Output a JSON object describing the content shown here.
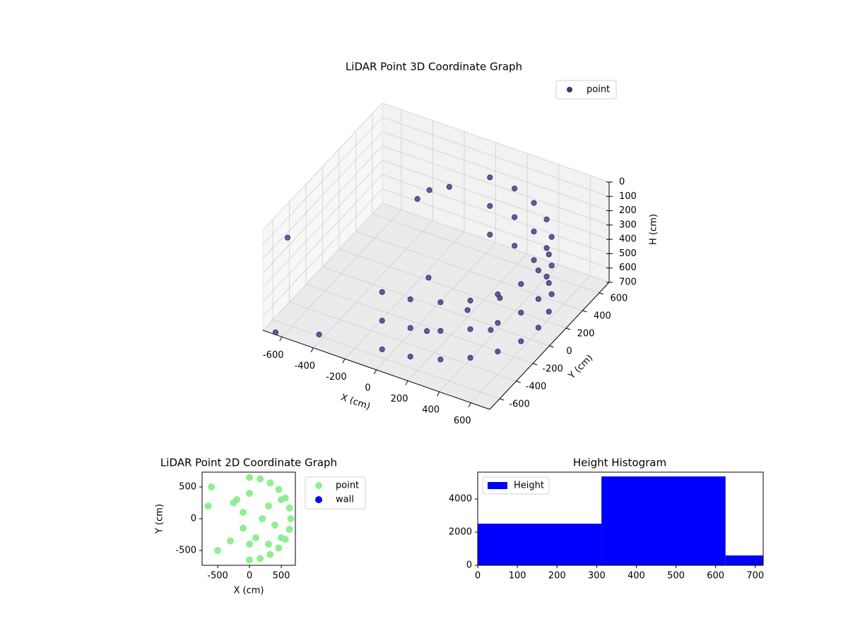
{
  "chart_data": [
    {
      "type": "scatter3d",
      "title": "LiDAR Point 3D Coordinate Graph",
      "x_label": "X (cm)",
      "y_label": "Y (cm)",
      "z_label": "H (cm)",
      "xlim": [
        -720,
        720
      ],
      "ylim": [
        -720,
        720
      ],
      "zlim": [
        0,
        700
      ],
      "z_inverted": true,
      "xticks": [
        -600,
        -400,
        -200,
        0,
        200,
        400,
        600
      ],
      "yticks": [
        -600,
        -400,
        -200,
        0,
        200,
        400,
        600
      ],
      "zticks": [
        0,
        100,
        200,
        300,
        400,
        500,
        600,
        700
      ],
      "grid": true,
      "legend": "upper right",
      "series": [
        {
          "name": "point",
          "color": "#46327e",
          "x": [
            0,
            168,
            325,
            460,
            563,
            628,
            650,
            628,
            563,
            460,
            325,
            168,
            0,
            0,
            168,
            325,
            460,
            563,
            628,
            650,
            628,
            563,
            460,
            325,
            168,
            0,
            0,
            168,
            325,
            460,
            563,
            628,
            650,
            628,
            563,
            460,
            325,
            168,
            0,
            200,
            300,
            100,
            400,
            -100,
            -200,
            -100,
            -250,
            -600,
            -650,
            -400
          ],
          "y": [
            -650,
            -628,
            -563,
            -460,
            -325,
            -168,
            0,
            168,
            325,
            460,
            563,
            628,
            650,
            -650,
            -628,
            -563,
            -460,
            -325,
            -168,
            0,
            168,
            325,
            460,
            563,
            628,
            650,
            -650,
            -628,
            -563,
            -460,
            -325,
            -168,
            0,
            168,
            325,
            460,
            563,
            628,
            650,
            0,
            200,
            -300,
            -100,
            100,
            300,
            350,
            250,
            -650,
            -700,
            -650
          ],
          "z": [
            200,
            200,
            200,
            200,
            200,
            200,
            200,
            200,
            200,
            200,
            200,
            200,
            200,
            400,
            400,
            400,
            400,
            400,
            400,
            400,
            400,
            400,
            400,
            400,
            400,
            400,
            600,
            600,
            600,
            600,
            600,
            600,
            600,
            600,
            600,
            600,
            600,
            600,
            600,
            650,
            650,
            650,
            650,
            600,
            150,
            120,
            200,
            50,
            700,
            650
          ]
        }
      ]
    },
    {
      "type": "scatter",
      "title": "LiDAR Point 2D Coordinate Graph",
      "x_label": "X (cm)",
      "y_label": "Y (cm)",
      "xlim": [
        -745,
        722
      ],
      "ylim": [
        -733,
        733
      ],
      "xticks": [
        -500,
        0,
        500
      ],
      "yticks": [
        -500,
        0,
        500
      ],
      "legend": "outside right",
      "series": [
        {
          "name": "point",
          "color": "#90ee90",
          "x": [
            0,
            168,
            325,
            460,
            563,
            628,
            650,
            628,
            563,
            460,
            325,
            168,
            0,
            200,
            300,
            100,
            400,
            -100,
            -200,
            -250,
            -600,
            -650,
            -500,
            -300,
            0,
            0,
            500,
            500,
            -100,
            300
          ],
          "y": [
            -650,
            -628,
            -563,
            -460,
            -325,
            -168,
            0,
            168,
            325,
            460,
            563,
            628,
            650,
            0,
            200,
            -300,
            -100,
            100,
            300,
            250,
            500,
            200,
            -500,
            -350,
            -400,
            400,
            300,
            -300,
            -150,
            -400
          ]
        },
        {
          "name": "wall",
          "color": "#0000ff",
          "x": [],
          "y": []
        }
      ]
    },
    {
      "type": "histogram",
      "title": "Height Histogram",
      "bins": [
        0,
        312,
        625,
        720
      ],
      "values": [
        2511,
        5362,
        596
      ],
      "xlim": [
        0,
        720
      ],
      "ylim": [
        0,
        5620
      ],
      "xticks": [
        0,
        100,
        200,
        300,
        400,
        500,
        600,
        700
      ],
      "yticks": [
        0,
        2000,
        4000
      ],
      "legend": "upper left",
      "series_name": "Height",
      "color": "#0000ff"
    }
  ]
}
